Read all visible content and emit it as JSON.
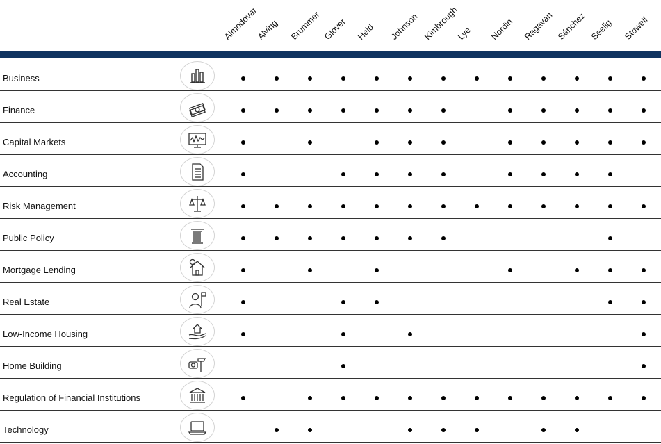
{
  "columns": [
    "Almodovar",
    "Alving",
    "Brummer",
    "Glover",
    "Heid",
    "Johnson",
    "Kimbrough",
    "Lye",
    "Nordin",
    "Ragavan",
    "Sánchez",
    "Seelig",
    "Stowell"
  ],
  "rows": [
    {
      "label": "Business",
      "icon": "bar-chart-icon",
      "marks": [
        1,
        1,
        1,
        1,
        1,
        1,
        1,
        1,
        1,
        1,
        1,
        1,
        1
      ]
    },
    {
      "label": "Finance",
      "icon": "money-stack-icon",
      "marks": [
        1,
        1,
        1,
        1,
        1,
        1,
        1,
        0,
        1,
        1,
        1,
        1,
        1
      ]
    },
    {
      "label": "Capital Markets",
      "icon": "stock-monitor-icon",
      "marks": [
        1,
        0,
        1,
        0,
        1,
        1,
        1,
        0,
        1,
        1,
        1,
        1,
        1
      ]
    },
    {
      "label": "Accounting",
      "icon": "document-icon",
      "marks": [
        1,
        0,
        0,
        1,
        1,
        1,
        1,
        0,
        1,
        1,
        1,
        1,
        0
      ]
    },
    {
      "label": "Risk Management",
      "icon": "scales-icon",
      "marks": [
        1,
        1,
        1,
        1,
        1,
        1,
        1,
        1,
        1,
        1,
        1,
        1,
        1
      ]
    },
    {
      "label": "Public Policy",
      "icon": "column-icon",
      "marks": [
        1,
        1,
        1,
        1,
        1,
        1,
        1,
        0,
        0,
        0,
        0,
        1,
        0
      ]
    },
    {
      "label": "Mortgage Lending",
      "icon": "dollar-house-icon",
      "marks": [
        1,
        0,
        1,
        0,
        1,
        0,
        0,
        0,
        1,
        0,
        1,
        1,
        1
      ]
    },
    {
      "label": "Real Estate",
      "icon": "agent-flag-icon",
      "marks": [
        1,
        0,
        0,
        1,
        1,
        0,
        0,
        0,
        0,
        0,
        0,
        1,
        1
      ]
    },
    {
      "label": "Low-Income Housing",
      "icon": "house-hand-icon",
      "marks": [
        1,
        0,
        0,
        1,
        0,
        1,
        0,
        0,
        0,
        0,
        0,
        0,
        1
      ]
    },
    {
      "label": "Home Building",
      "icon": "hammer-tape-icon",
      "marks": [
        0,
        0,
        0,
        1,
        0,
        0,
        0,
        0,
        0,
        0,
        0,
        0,
        1
      ]
    },
    {
      "label": "Regulation of Financial Institutions",
      "icon": "bank-icon",
      "marks": [
        1,
        0,
        1,
        1,
        1,
        1,
        1,
        1,
        1,
        1,
        1,
        1,
        1
      ]
    },
    {
      "label": "Technology",
      "icon": "laptop-icon",
      "marks": [
        0,
        1,
        1,
        0,
        0,
        1,
        1,
        1,
        0,
        1,
        1,
        0,
        0
      ]
    }
  ]
}
